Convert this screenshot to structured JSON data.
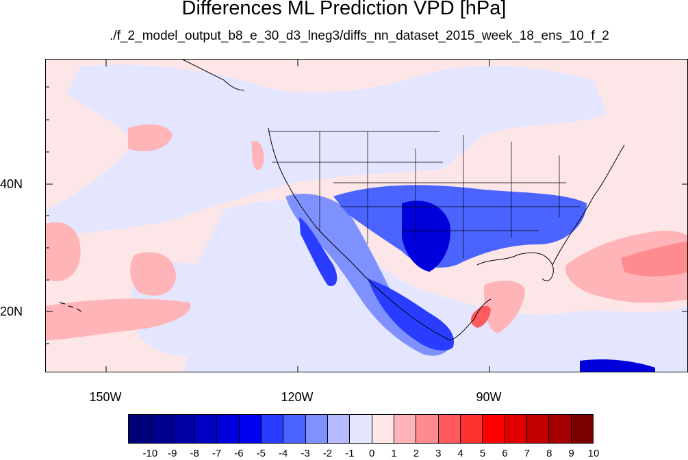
{
  "title": "Differences ML Prediction VPD [hPa]",
  "subtitle": "./f_2_model_output_b8_e_30_d3_lneg3/diffs_nn_dataset_2015_week_18_ens_10_f_2",
  "lat_labels": [
    "40N",
    "20N"
  ],
  "lon_labels": [
    "150W",
    "120W",
    "90W"
  ],
  "colorbar": {
    "labels": [
      "-10",
      "-9",
      "-8",
      "-7",
      "-6",
      "-5",
      "-4",
      "-3",
      "-2",
      "-1",
      "0",
      "1",
      "2",
      "3",
      "4",
      "5",
      "6",
      "7",
      "8",
      "9",
      "10"
    ],
    "colors": [
      "#00007a",
      "#00008f",
      "#0000a8",
      "#0000c2",
      "#0000dc",
      "#0000f5",
      "#2a3cff",
      "#4b64ff",
      "#7f90ff",
      "#b4bcff",
      "#e4e6ff",
      "#ffe6e8",
      "#ffb4b8",
      "#ff8a8f",
      "#ff5a5e",
      "#ff3030",
      "#ff0000",
      "#e00000",
      "#c40000",
      "#a40000",
      "#7a0000"
    ]
  },
  "colors": {
    "land_outline": "#000000",
    "zero_band": "#fde6e8"
  }
}
